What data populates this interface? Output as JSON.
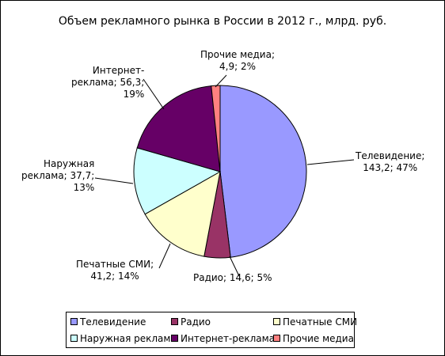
{
  "chart_data": {
    "type": "pie",
    "title": "Объем рекламного рынка в России в 2012 г., млрд. руб.",
    "series": [
      {
        "name": "Телевидение",
        "value": 143.2,
        "percent": 47,
        "color": "#9999FF"
      },
      {
        "name": "Радио",
        "value": 14.6,
        "percent": 5,
        "color": "#993366"
      },
      {
        "name": "Печатные СМИ",
        "value": 41.2,
        "percent": 14,
        "color": "#FFFFCC"
      },
      {
        "name": "Наружная реклама",
        "value": 37.7,
        "percent": 13,
        "color": "#CCFFFF"
      },
      {
        "name": "Интернет-реклама",
        "value": 56.3,
        "percent": 19,
        "color": "#660066"
      },
      {
        "name": "Прочие медиа",
        "value": 4.9,
        "percent": 2,
        "color": "#FF8080"
      }
    ],
    "data_labels": [
      [
        "Телевидение;",
        "143,2; 47%"
      ],
      [
        "Радио; 14,6; 5%"
      ],
      [
        "Печатные СМИ;",
        "41,2; 14%"
      ],
      [
        "Наружная",
        "реклама; 37,7;",
        "13%"
      ],
      [
        "Интернет-",
        "реклама; 56,3;",
        "19%"
      ],
      [
        "Прочие медиа;",
        "4,9; 2%"
      ]
    ],
    "legend": {
      "placement": "bottom",
      "items": [
        "Телевидение",
        "Радио",
        "Печатные СМИ",
        "Наружная реклама",
        "Интернет-реклама",
        "Прочие медиа"
      ]
    }
  }
}
